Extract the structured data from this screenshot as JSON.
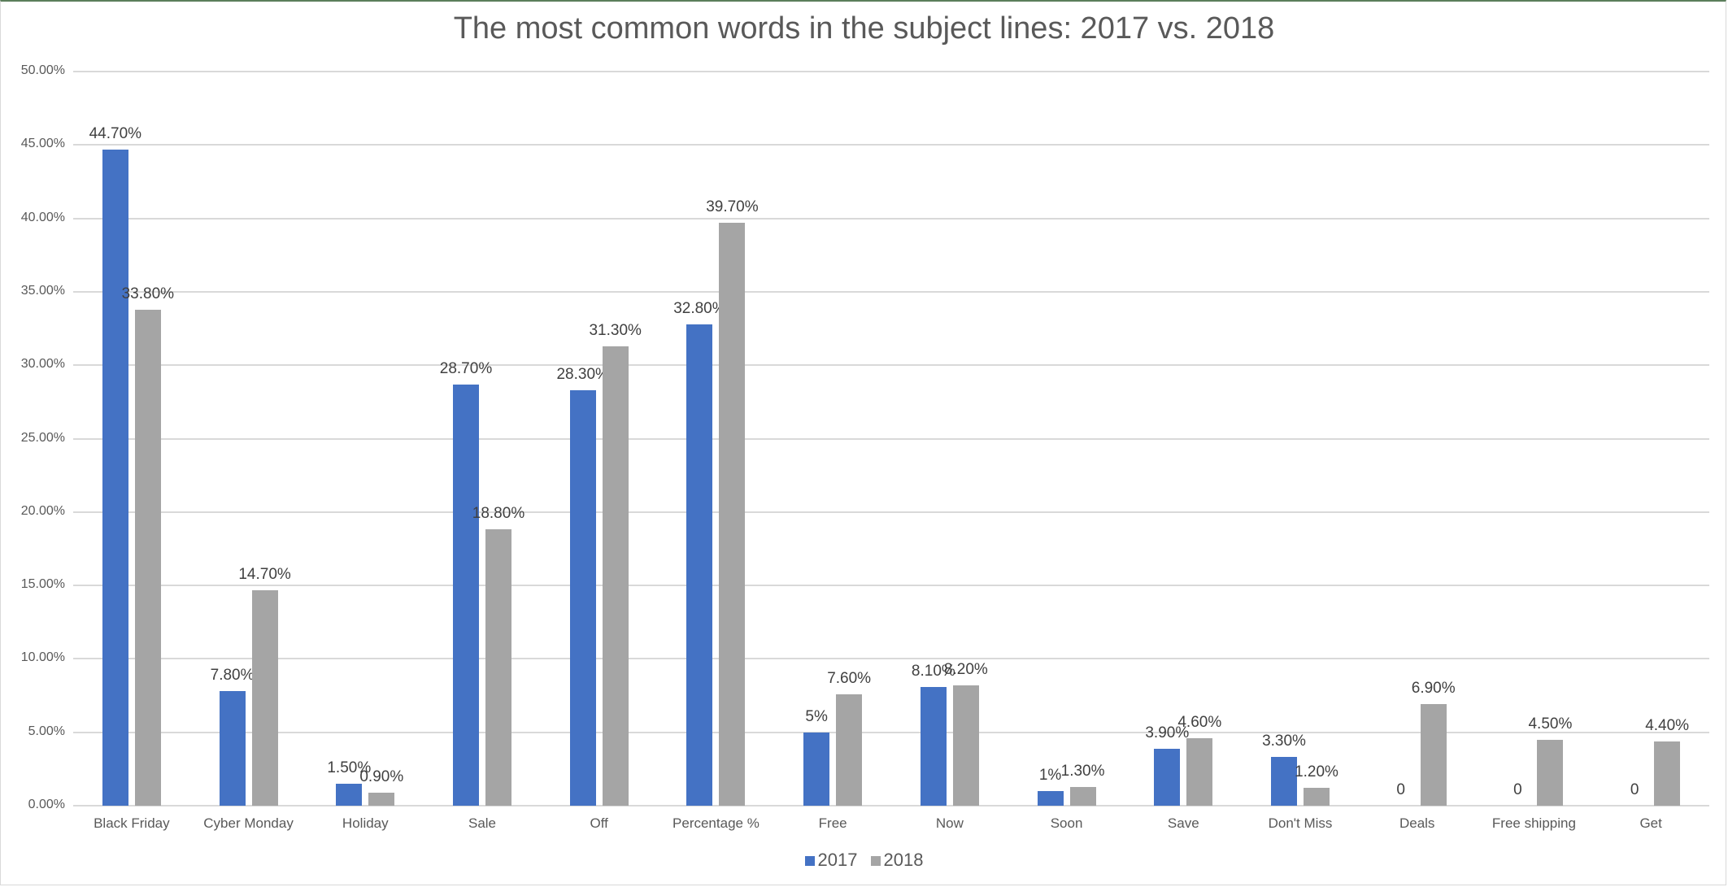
{
  "chart_data": {
    "type": "bar",
    "title": "The most common words in the subject lines: 2017 vs. 2018",
    "xlabel": "",
    "ylabel": "",
    "ylim": [
      0,
      50
    ],
    "yticks": [
      "0.00%",
      "5.00%",
      "10.00%",
      "15.00%",
      "20.00%",
      "25.00%",
      "30.00%",
      "35.00%",
      "40.00%",
      "45.00%",
      "50.00%"
    ],
    "grid": true,
    "legend_position": "bottom",
    "categories": [
      "Black Friday",
      "Cyber Monday",
      "Holiday",
      "Sale",
      "Off",
      "Percentage %",
      "Free",
      "Now",
      "Soon",
      "Save",
      "Don't Miss",
      "Deals",
      "Free shipping",
      "Get"
    ],
    "series": [
      {
        "name": "2017",
        "color": "#4472c4",
        "values": [
          44.7,
          7.8,
          1.5,
          28.7,
          28.3,
          32.8,
          5,
          8.1,
          1,
          3.9,
          3.3,
          0,
          0,
          0
        ],
        "labels": [
          "44.70%",
          "7.80%",
          "1.50%",
          "28.70%",
          "28.30%",
          "32.80%",
          "5%",
          "8.10%",
          "1%",
          "3.90%",
          "3.30%",
          "0",
          "0",
          "0"
        ]
      },
      {
        "name": "2018",
        "color": "#a5a5a5",
        "values": [
          33.8,
          14.7,
          0.9,
          18.8,
          31.3,
          39.7,
          7.6,
          8.2,
          1.3,
          4.6,
          1.2,
          6.9,
          4.5,
          4.4
        ],
        "labels": [
          "33.80%",
          "14.70%",
          "0.90%",
          "18.80%",
          "31.30%",
          "39.70%",
          "7.60%",
          "8.20%",
          "1.30%",
          "4.60%",
          "1.20%",
          "6.90%",
          "4.50%",
          "4.40%"
        ]
      }
    ]
  }
}
